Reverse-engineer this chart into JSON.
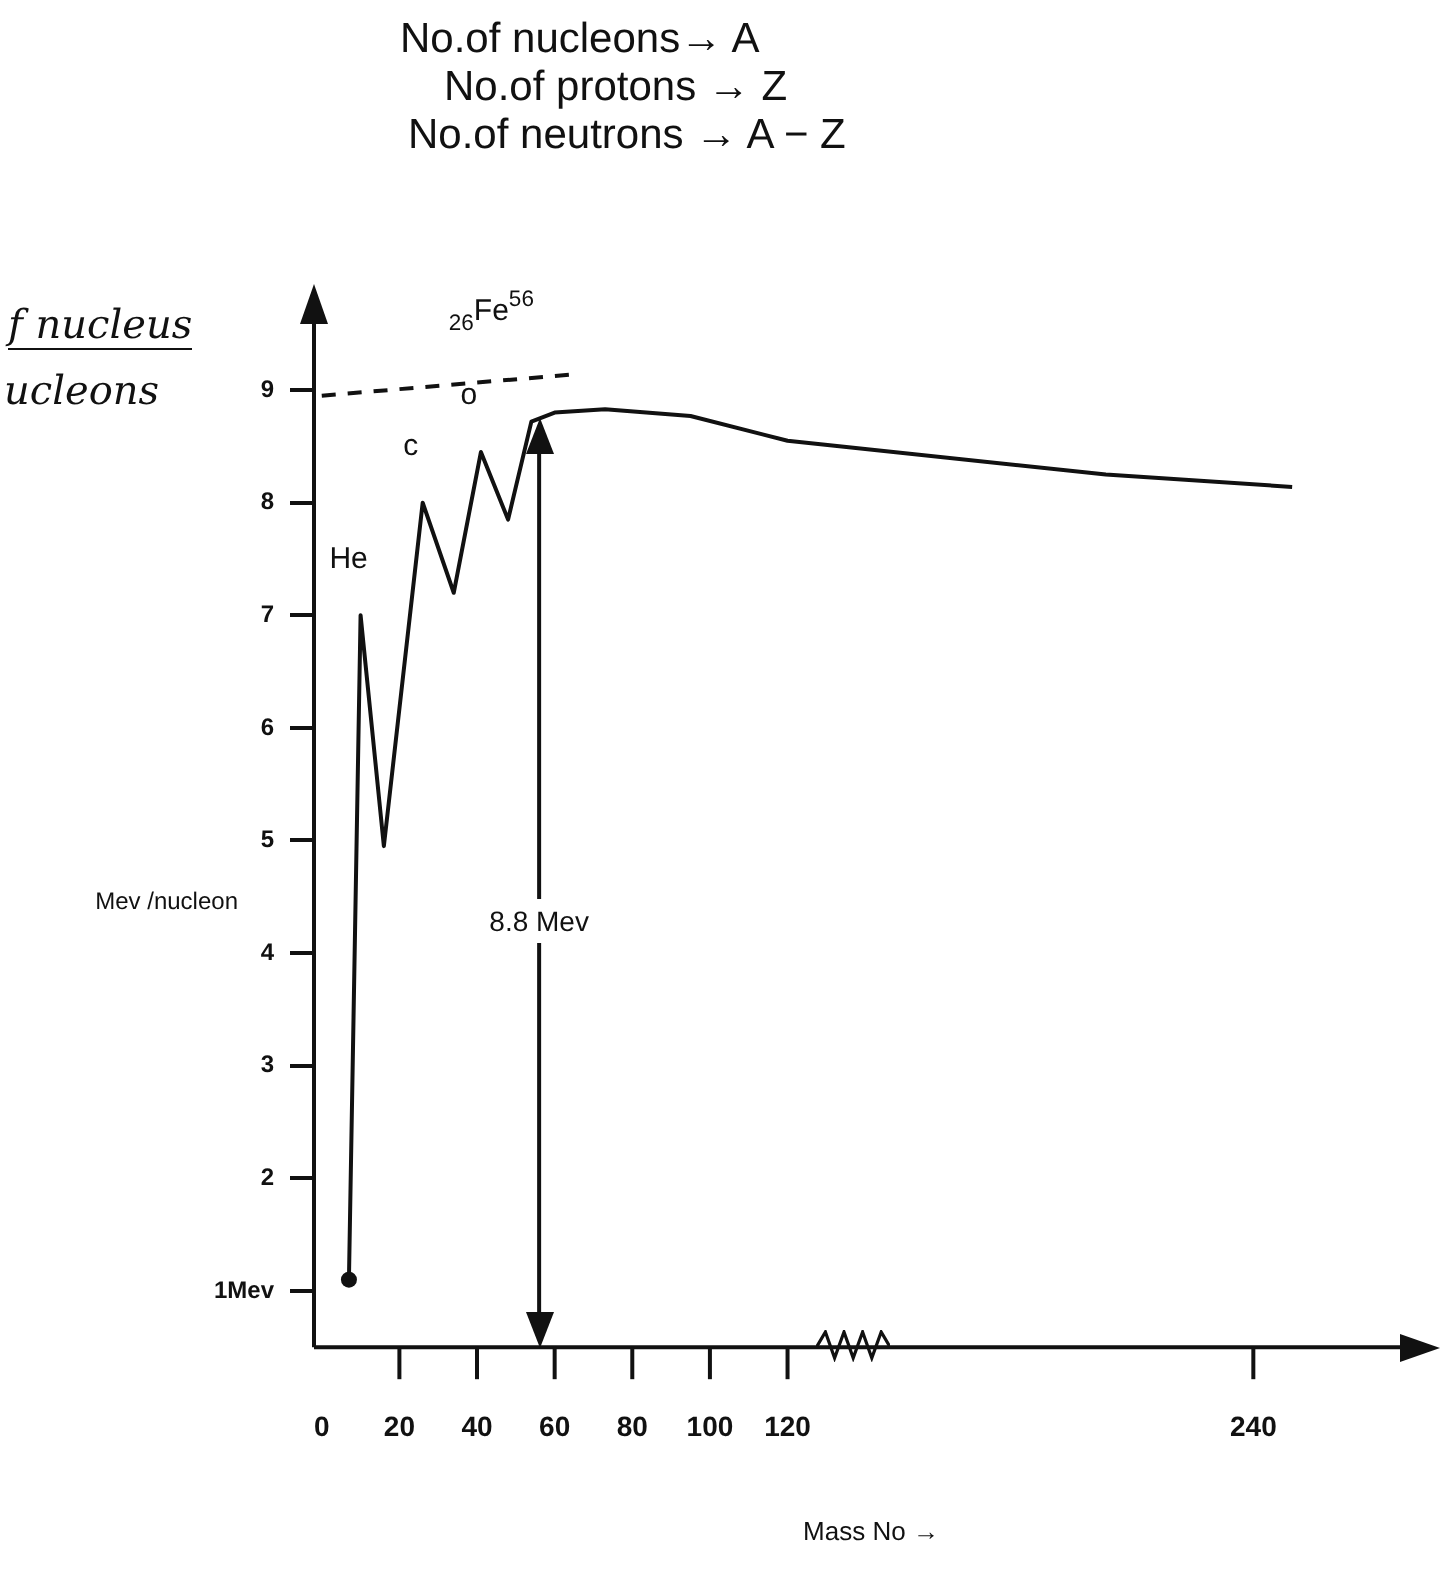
{
  "chart_data": {
    "type": "line",
    "xlabel": "Mass No →",
    "ylabel": "Mev /nucleon",
    "xlim": [
      -2,
      285
    ],
    "xticks": [
      0,
      20,
      40,
      60,
      80,
      100,
      120,
      240
    ],
    "ylim": [
      0.5,
      9.8
    ],
    "yticks": [
      {
        "value": 1,
        "label": "1Mev"
      },
      2,
      3,
      4,
      5,
      6,
      7,
      8,
      9
    ],
    "grid": false,
    "legend": false,
    "series": [
      {
        "type": "line",
        "color": "#111111",
        "marker": "none",
        "line_style": "solid",
        "x": [
          7,
          10,
          16,
          26,
          34,
          41,
          48,
          54,
          60,
          73,
          95,
          120,
          202,
          250
        ],
        "values": [
          1.1,
          7.0,
          4.95,
          8.0,
          7.2,
          8.45,
          7.85,
          8.72,
          8.8,
          8.83,
          8.77,
          8.55,
          8.25,
          8.14
        ]
      },
      {
        "type": "line",
        "color": "#111111",
        "marker": "none",
        "line_style": "dashed",
        "x": [
          0,
          65
        ],
        "values": [
          8.95,
          9.14
        ]
      },
      {
        "type": "scatter",
        "color": "#111111",
        "marker": "circle",
        "x": [
          7
        ],
        "values": [
          1.1
        ]
      }
    ],
    "ref_lines": [
      {
        "axis": "x",
        "value": 56,
        "label": "8.8 Mev"
      }
    ],
    "annotations": [
      "No.of nucleons→ A",
      "No.of protons → Z",
      "No.of neutrons → A − Z",
      "f nucleus",
      "ucleons",
      {
        "text": "He",
        "x": 10,
        "y": 7.0
      },
      {
        "text": "c",
        "x": 26,
        "y": 8.0
      },
      {
        "text": "o",
        "x": 41,
        "y": 8.45
      },
      {
        "text": "$_{26}$Fe$^{56}$",
        "x": 54,
        "y": 8.72
      }
    ]
  }
}
